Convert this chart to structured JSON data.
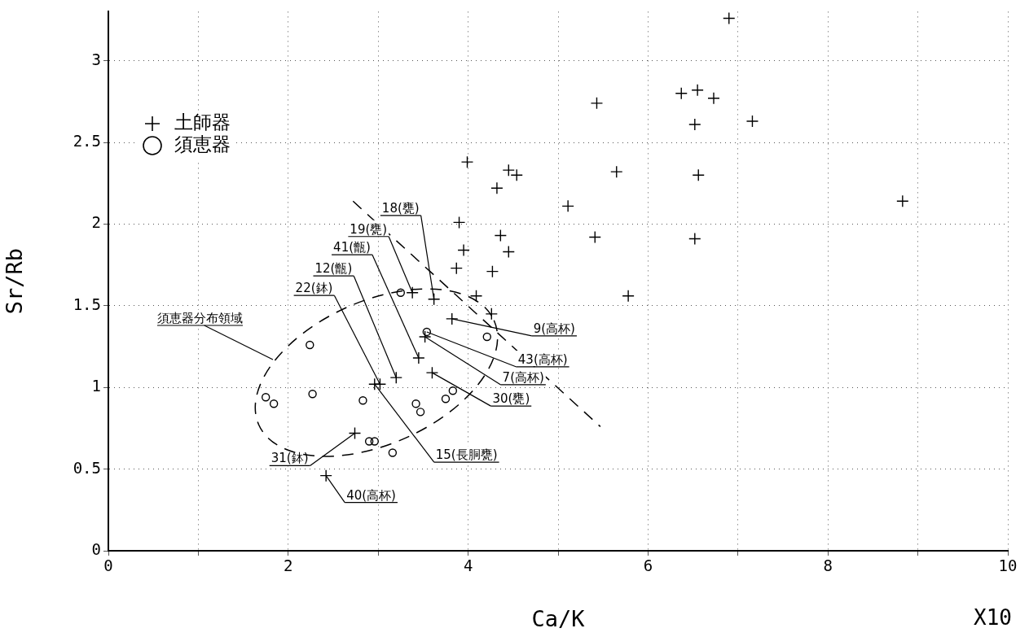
{
  "chart_data": {
    "type": "scatter",
    "xlabel": "Ca/K",
    "ylabel": "Sr/Rb",
    "xlim": [
      0,
      10
    ],
    "xticks": [
      0,
      {
        "value": 1,
        "label": null
      },
      2,
      {
        "value": 3,
        "label": null
      },
      4,
      {
        "value": 5,
        "label": null
      },
      6,
      {
        "value": 7,
        "label": null
      },
      8,
      {
        "value": 9,
        "label": null
      },
      10
    ],
    "ylim": [
      0,
      3.3
    ],
    "yticks": [
      0,
      0.5,
      1,
      1.5,
      2,
      2.5,
      3
    ],
    "grid": true,
    "legend": "top left",
    "series": [
      {
        "name": "土師器",
        "type": "scatter",
        "marker": "cross",
        "color": "#000000",
        "x": [
          6.9,
          5.43,
          6.37,
          6.55,
          6.73,
          6.52,
          7.16,
          3.99,
          4.45,
          4.54,
          4.32,
          5.65,
          6.56,
          8.83,
          5.11,
          3.9,
          4.36,
          5.41,
          6.52,
          3.95,
          4.45,
          3.87,
          4.27,
          3.38,
          3.62,
          4.09,
          5.78,
          4.26,
          3.82,
          3.52,
          3.45,
          3.6,
          3.2,
          3.02,
          2.96,
          2.74,
          2.42
        ],
        "values": [
          3.26,
          2.74,
          2.8,
          2.82,
          2.77,
          2.61,
          2.63,
          2.38,
          2.33,
          2.3,
          2.22,
          2.32,
          2.3,
          2.14,
          2.11,
          2.01,
          1.93,
          1.92,
          1.91,
          1.84,
          1.83,
          1.73,
          1.71,
          1.58,
          1.54,
          1.56,
          1.56,
          1.45,
          1.42,
          1.31,
          1.18,
          1.09,
          1.06,
          1.02,
          1.02,
          0.72,
          0.46
        ]
      },
      {
        "name": "須恵器",
        "type": "scatter",
        "marker": "circle",
        "color": "#000000",
        "x": [
          3.25,
          3.54,
          4.21,
          2.24,
          1.75,
          1.84,
          2.27,
          2.83,
          3.42,
          3.47,
          3.75,
          3.83,
          2.9,
          2.96,
          3.16
        ],
        "values": [
          1.58,
          1.34,
          1.31,
          1.26,
          0.94,
          0.9,
          0.96,
          0.92,
          0.9,
          0.85,
          0.93,
          0.98,
          0.67,
          0.67,
          0.6
        ]
      },
      {
        "type": "line",
        "marker": "none",
        "line_style": "dashed",
        "color": "#000000",
        "x": [
          2.72,
          5.47
        ],
        "values": [
          2.14,
          0.76
        ]
      }
    ],
    "annotations": [
      {
        "text": "18(甕)",
        "x": 3.62,
        "y": 1.54
      },
      {
        "text": "19(甕)",
        "x": 3.38,
        "y": 1.58
      },
      {
        "text": "41(甑)",
        "x": 3.45,
        "y": 1.18
      },
      {
        "text": "12(甑)",
        "x": 3.2,
        "y": 1.06
      },
      {
        "text": "22(鉢)",
        "x": 3.02,
        "y": 1.02
      },
      {
        "text": "9(高杯)",
        "x": 3.82,
        "y": 1.42
      },
      {
        "text": "43(高杯)",
        "x": 3.54,
        "y": 1.34
      },
      {
        "text": "7(高杯)",
        "x": 3.52,
        "y": 1.31
      },
      {
        "text": "30(甕)",
        "x": 3.6,
        "y": 1.09
      },
      {
        "text": "15(長胴甕)",
        "x": 2.96,
        "y": 1.02
      },
      {
        "text": "31(鉢)",
        "x": 2.74,
        "y": 0.72
      },
      {
        "text": "40(高杯)",
        "x": 2.42,
        "y": 0.46
      },
      "須恵器分布領域",
      "X10"
    ]
  }
}
